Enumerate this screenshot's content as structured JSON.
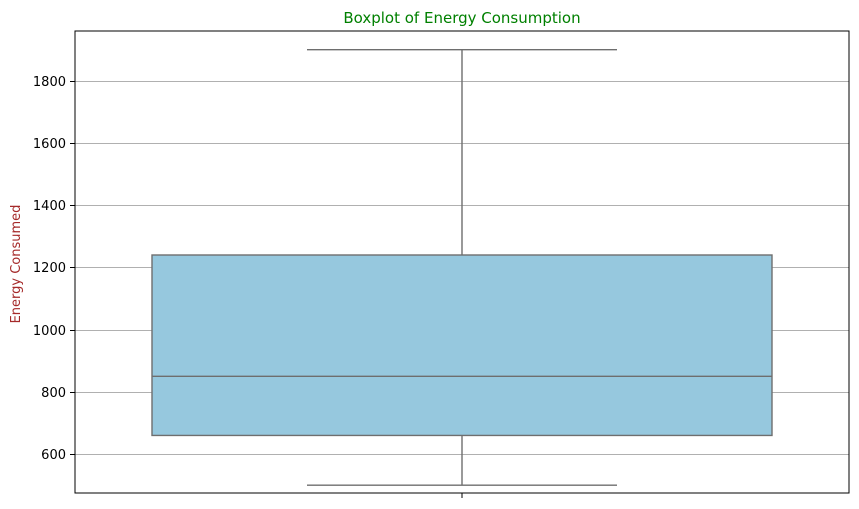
{
  "chart_data": {
    "type": "boxplot",
    "title": "Boxplot of Energy Consumption",
    "xlabel": "",
    "ylabel": "Energy Consumed",
    "ylim": [
      475,
      1960
    ],
    "yticks": [
      600,
      800,
      1000,
      1200,
      1400,
      1600,
      1800
    ],
    "grid": "y",
    "box": {
      "min": 500,
      "q1": 660,
      "median": 850,
      "q3": 1240,
      "max": 1900
    },
    "colors": {
      "box_fill": "#96c8de",
      "box_edge": "#6e6e6e",
      "title": "#008000",
      "ylabel": "#a52a2a",
      "grid": "#b0b0b0"
    }
  }
}
